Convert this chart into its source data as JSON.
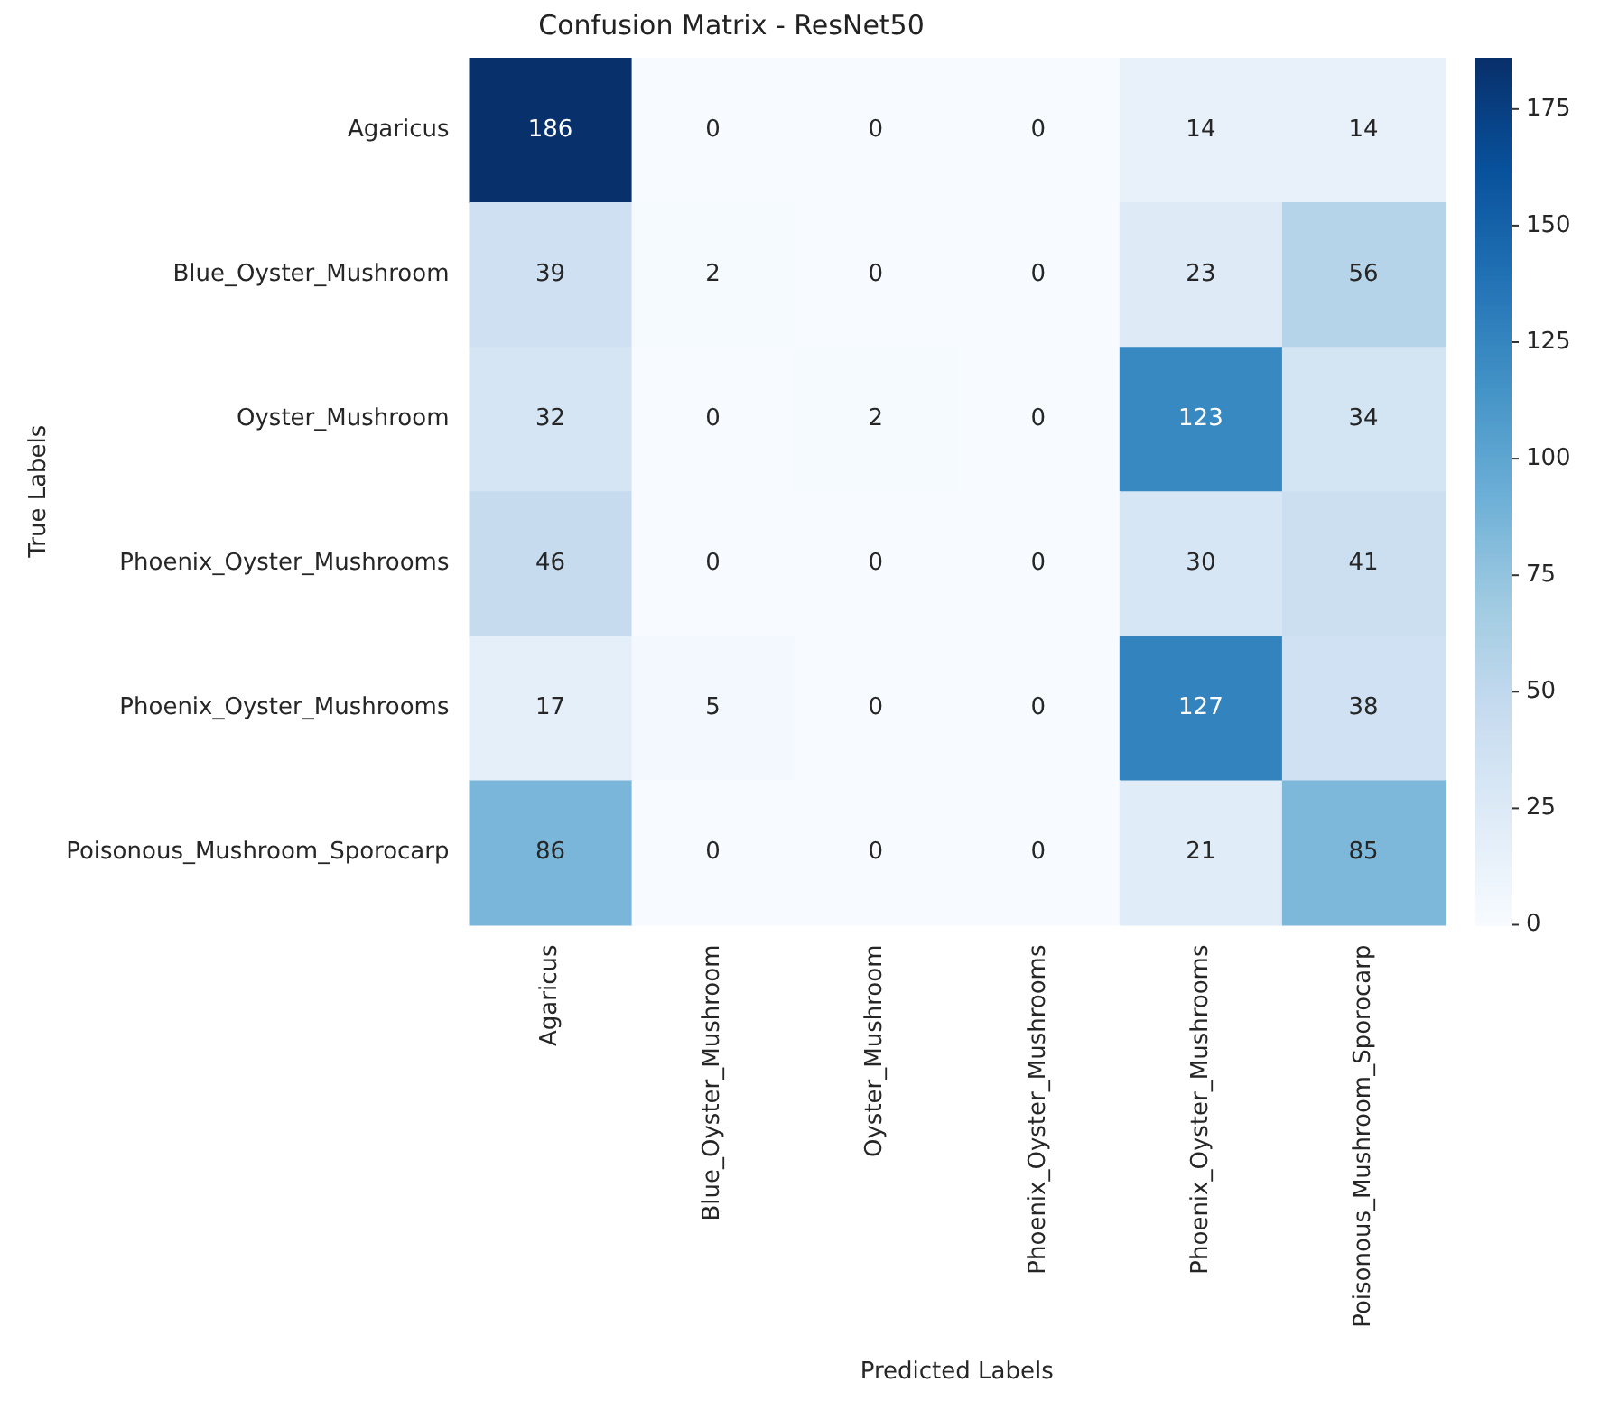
{
  "chart_data": {
    "type": "heatmap",
    "title": "Confusion Matrix - ResNet50",
    "xlabel": "Predicted Labels",
    "ylabel": "True Labels",
    "categories": [
      "Agaricus",
      "Blue_Oyster_Mushroom",
      "Oyster_Mushroom",
      "Phoenix_Oyster_Mushrooms",
      "Phoenix_Oyster_Mushrooms",
      "Poisonous_Mushroom_Sporocarp"
    ],
    "y_categories": [
      "Agaricus",
      "Blue_Oyster_Mushroom",
      "Oyster_Mushroom",
      "Phoenix_Oyster_Mushrooms",
      "Phoenix_Oyster_Mushrooms",
      "Poisonous_Mushroom_Sporocarp"
    ],
    "cells": [
      [
        186,
        0,
        0,
        0,
        14,
        14
      ],
      [
        39,
        2,
        0,
        0,
        23,
        56
      ],
      [
        32,
        0,
        2,
        0,
        123,
        34
      ],
      [
        46,
        0,
        0,
        0,
        30,
        41
      ],
      [
        17,
        5,
        0,
        0,
        127,
        38
      ],
      [
        86,
        0,
        0,
        0,
        21,
        85
      ]
    ],
    "clim": [
      0,
      186
    ],
    "cticks": [
      0,
      25,
      50,
      75,
      100,
      125,
      150,
      175
    ],
    "data_labels": true
  }
}
